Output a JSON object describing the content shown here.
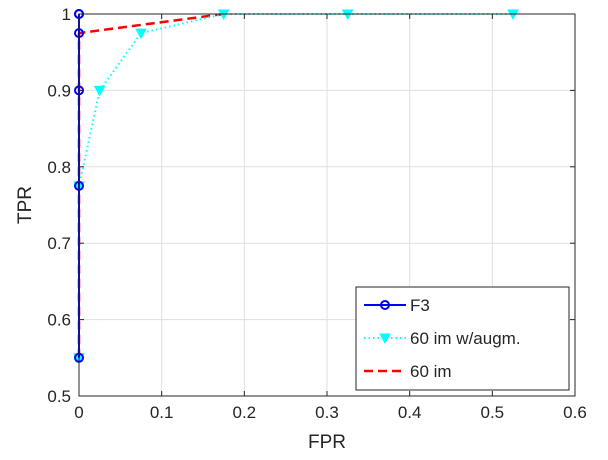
{
  "chart_data": {
    "type": "line",
    "xlabel": "FPR",
    "ylabel": "TPR",
    "xlim": [
      0,
      0.6
    ],
    "ylim": [
      0.5,
      1
    ],
    "xticks": [
      0,
      0.1,
      0.2,
      0.3,
      0.4,
      0.5,
      0.6
    ],
    "yticks": [
      0.5,
      0.6,
      0.7,
      0.8,
      0.9,
      1
    ],
    "xtick_labels": [
      "0",
      "0.1",
      "0.2",
      "0.3",
      "0.4",
      "0.5",
      "0.6"
    ],
    "ytick_labels": [
      "0.5",
      "0.6",
      "0.7",
      "0.8",
      "0.9",
      "1"
    ],
    "grid": true,
    "legend_position": "bottom-right",
    "series": [
      {
        "name": "F3",
        "color": "#0000ff",
        "line": "solid",
        "marker": "circle",
        "x": [
          0,
          0,
          0,
          0,
          0,
          0
        ],
        "y": [
          0.55,
          0.775,
          0.9,
          0.975,
          1.0,
          1.0
        ]
      },
      {
        "name": "60 im w/augm.",
        "color": "#00ffff",
        "line": "dotted",
        "marker": "down-triangle",
        "x": [
          0,
          0,
          0.025,
          0.075,
          0.175,
          0.325,
          0.525
        ],
        "y": [
          0.55,
          0.775,
          0.9,
          0.975,
          1.0,
          1.0,
          1.0
        ]
      },
      {
        "name": "60 im",
        "color": "#ff0000",
        "line": "dashed",
        "marker": "none",
        "x": [
          0,
          0,
          0,
          0.175
        ],
        "y": [
          0.55,
          0.775,
          0.975,
          1.0
        ]
      }
    ]
  }
}
